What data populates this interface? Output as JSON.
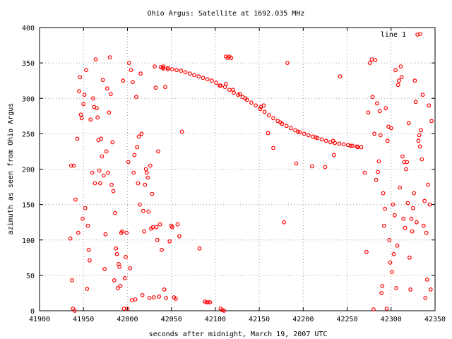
{
  "chart_data": {
    "type": "scatter",
    "title": "Ohio Argus: Satellite at 1692.035 MHz",
    "xlabel": "seconds after midnight, March 19, 2007 UTC",
    "ylabel": "azimuth as seen from Ohio Argus",
    "xlim": [
      41900,
      42350
    ],
    "ylim": [
      0,
      400
    ],
    "x_ticks": [
      "41900",
      "41950",
      "42000",
      "42050",
      "42100",
      "42150",
      "42200",
      "42250",
      "42300",
      "42350"
    ],
    "y_ticks": [
      "0",
      "50",
      "100",
      "150",
      "200",
      "250",
      "300",
      "350",
      "400"
    ],
    "grid": true,
    "legend_position": "top-right",
    "colors": {
      "series": "#ff0000",
      "grid": "#a0a0a0",
      "axis": "#000000"
    },
    "series": [
      {
        "name": "line 1",
        "marker": "circle",
        "points": [
          [
            41935,
            102
          ],
          [
            41936,
            205
          ],
          [
            41937,
            43
          ],
          [
            41938,
            3
          ],
          [
            41939,
            205
          ],
          [
            41940,
            0
          ],
          [
            41941,
            157
          ],
          [
            41943,
            243
          ],
          [
            41944,
            110
          ],
          [
            41945,
            310
          ],
          [
            41946,
            330
          ],
          [
            41947,
            277
          ],
          [
            41948,
            272
          ],
          [
            41949,
            130
          ],
          [
            41950,
            292
          ],
          [
            41951,
            305
          ],
          [
            41952,
            145
          ],
          [
            41953,
            340
          ],
          [
            41954,
            31
          ],
          [
            41955,
            120
          ],
          [
            41956,
            86
          ],
          [
            41957,
            71
          ],
          [
            41958,
            270
          ],
          [
            41960,
            195
          ],
          [
            41961,
            300
          ],
          [
            41962,
            288
          ],
          [
            41963,
            180
          ],
          [
            41964,
            355
          ],
          [
            41965,
            286
          ],
          [
            41966,
            273
          ],
          [
            41967,
            241
          ],
          [
            41968,
            198
          ],
          [
            41969,
            180
          ],
          [
            41970,
            243
          ],
          [
            41971,
            218
          ],
          [
            41972,
            326
          ],
          [
            41973,
            191
          ],
          [
            41974,
            59
          ],
          [
            41975,
            108
          ],
          [
            41976,
            225
          ],
          [
            41977,
            314
          ],
          [
            41978,
            195
          ],
          [
            41979,
            280
          ],
          [
            41980,
            358
          ],
          [
            41981,
            306
          ],
          [
            41982,
            178
          ],
          [
            41983,
            238
          ],
          [
            41984,
            169
          ],
          [
            41985,
            43
          ],
          [
            41986,
            138
          ],
          [
            41987,
            88
          ],
          [
            41988,
            80
          ],
          [
            41989,
            32
          ],
          [
            41990,
            66
          ],
          [
            41991,
            62
          ],
          [
            41992,
            35
          ],
          [
            41993,
            110
          ],
          [
            41994,
            112
          ],
          [
            41995,
            325
          ],
          [
            41996,
            3
          ],
          [
            41997,
            46
          ],
          [
            41998,
            76
          ],
          [
            41999,
            110
          ],
          [
            42000,
            3
          ],
          [
            42001,
            210
          ],
          [
            42002,
            350
          ],
          [
            42003,
            60
          ],
          [
            42004,
            340
          ],
          [
            42005,
            15
          ],
          [
            42006,
            323
          ],
          [
            42007,
            195
          ],
          [
            42008,
            220
          ],
          [
            42009,
            16
          ],
          [
            42010,
            302
          ],
          [
            42011,
            231
          ],
          [
            42012,
            180
          ],
          [
            42013,
            246
          ],
          [
            42014,
            150
          ],
          [
            42015,
            335
          ],
          [
            42016,
            250
          ],
          [
            42017,
            22
          ],
          [
            42018,
            141
          ],
          [
            42019,
            112
          ],
          [
            42020,
            178
          ],
          [
            42021,
            200
          ],
          [
            42022,
            195
          ],
          [
            42023,
            188
          ],
          [
            42024,
            140
          ],
          [
            42025,
            18
          ],
          [
            42026,
            205
          ],
          [
            42027,
            116
          ],
          [
            42028,
            165
          ],
          [
            42029,
            118
          ],
          [
            42030,
            19
          ],
          [
            42031,
            345
          ],
          [
            42032,
            315
          ],
          [
            42033,
            118
          ],
          [
            42034,
            100
          ],
          [
            42035,
            225
          ],
          [
            42036,
            20
          ],
          [
            42037,
            122
          ],
          [
            42038,
            344
          ],
          [
            42039,
            86
          ],
          [
            42040,
            343
          ],
          [
            42041,
            342
          ],
          [
            42042,
            30
          ],
          [
            42043,
            316
          ],
          [
            42044,
            18
          ],
          [
            42046,
            341
          ],
          [
            42048,
            98
          ],
          [
            42050,
            120
          ],
          [
            42051,
            118
          ],
          [
            42053,
            19
          ],
          [
            42055,
            17
          ],
          [
            42057,
            122
          ],
          [
            42059,
            105
          ],
          [
            42062,
            253
          ],
          [
            42082,
            88
          ],
          [
            42088,
            13
          ],
          [
            42090,
            12
          ],
          [
            42092,
            12
          ],
          [
            42094,
            12
          ],
          [
            42106,
            3
          ],
          [
            42108,
            1
          ],
          [
            42110,
            0
          ],
          [
            42112,
            359
          ],
          [
            42114,
            357
          ],
          [
            42116,
            359
          ],
          [
            42118,
            357
          ],
          [
            42155,
            290
          ],
          [
            42160,
            251
          ],
          [
            42166,
            230
          ],
          [
            42178,
            125
          ],
          [
            42182,
            350
          ],
          [
            42192,
            208
          ],
          [
            42210,
            204
          ],
          [
            42225,
            203
          ],
          [
            42235,
            220
          ],
          [
            42242,
            331
          ],
          [
            42270,
            195
          ],
          [
            42272,
            83
          ],
          [
            42274,
            280
          ],
          [
            42276,
            350
          ],
          [
            42278,
            355
          ],
          [
            42279,
            302
          ],
          [
            42280,
            2
          ],
          [
            42281,
            250
          ],
          [
            42282,
            354
          ],
          [
            42283,
            185
          ],
          [
            42284,
            293
          ],
          [
            42285,
            196
          ],
          [
            42286,
            211
          ],
          [
            42287,
            282
          ],
          [
            42288,
            248
          ],
          [
            42289,
            25
          ],
          [
            42290,
            35
          ],
          [
            42291,
            166
          ],
          [
            42292,
            120
          ],
          [
            42293,
            144
          ],
          [
            42294,
            286
          ],
          [
            42295,
            3
          ],
          [
            42296,
            240
          ],
          [
            42297,
            260
          ],
          [
            42298,
            100
          ],
          [
            42299,
            68
          ],
          [
            42300,
            258
          ],
          [
            42301,
            55
          ],
          [
            42302,
            150
          ],
          [
            42303,
            80
          ],
          [
            42304,
            135
          ],
          [
            42305,
            340
          ],
          [
            42306,
            32
          ],
          [
            42307,
            92
          ],
          [
            42308,
            319
          ],
          [
            42309,
            325
          ],
          [
            42310,
            174
          ],
          [
            42311,
            345
          ],
          [
            42312,
            330
          ],
          [
            42313,
            218
          ],
          [
            42314,
            130
          ],
          [
            42315,
            210
          ],
          [
            42316,
            117
          ],
          [
            42317,
            200
          ],
          [
            42318,
            210
          ],
          [
            42319,
            152
          ],
          [
            42320,
            265
          ],
          [
            42321,
            75
          ],
          [
            42322,
            30
          ],
          [
            42323,
            130
          ],
          [
            42324,
            112
          ],
          [
            42325,
            145
          ],
          [
            42326,
            166
          ],
          [
            42327,
            325
          ],
          [
            42328,
            295
          ],
          [
            42329,
            125
          ],
          [
            42330,
            390
          ],
          [
            42331,
            240
          ],
          [
            42332,
            248
          ],
          [
            42333,
            232
          ],
          [
            42334,
            255
          ],
          [
            42335,
            214
          ],
          [
            42336,
            305
          ],
          [
            42337,
            120
          ],
          [
            42338,
            155
          ],
          [
            42339,
            18
          ],
          [
            42340,
            110
          ],
          [
            42341,
            44
          ],
          [
            42342,
            178
          ],
          [
            42343,
            290
          ],
          [
            42344,
            150
          ],
          [
            42345,
            30
          ],
          [
            42346,
            268
          ],
          [
            42041,
            345
          ],
          [
            42046,
            343
          ],
          [
            42051,
            341
          ],
          [
            42056,
            340
          ],
          [
            42061,
            339
          ],
          [
            42066,
            337
          ],
          [
            42071,
            335
          ],
          [
            42076,
            333
          ],
          [
            42081,
            331
          ],
          [
            42086,
            329
          ],
          [
            42091,
            327
          ],
          [
            42096,
            325
          ],
          [
            42101,
            322
          ],
          [
            42106,
            318
          ],
          [
            42111,
            316
          ],
          [
            42116,
            312
          ],
          [
            42121,
            308
          ],
          [
            42126,
            305
          ],
          [
            42131,
            302
          ],
          [
            42136,
            298
          ],
          [
            42141,
            294
          ],
          [
            42146,
            290
          ],
          [
            42151,
            285
          ],
          [
            42156,
            281
          ],
          [
            42161,
            276
          ],
          [
            42166,
            272
          ],
          [
            42171,
            268
          ],
          [
            42176,
            264
          ],
          [
            42181,
            261
          ],
          [
            42186,
            258
          ],
          [
            42191,
            255
          ],
          [
            42196,
            252
          ],
          [
            42201,
            250
          ],
          [
            42206,
            248
          ],
          [
            42211,
            246
          ],
          [
            42216,
            244
          ],
          [
            42221,
            242
          ],
          [
            42226,
            240
          ],
          [
            42231,
            238
          ],
          [
            42236,
            237
          ],
          [
            42241,
            236
          ],
          [
            42246,
            235
          ],
          [
            42251,
            234
          ],
          [
            42256,
            233
          ],
          [
            42261,
            232
          ],
          [
            42266,
            231
          ],
          [
            42105,
            318
          ],
          [
            42112,
            320
          ],
          [
            42120,
            312
          ],
          [
            42128,
            306
          ],
          [
            42134,
            300
          ],
          [
            42152,
            288
          ],
          [
            42174,
            266
          ],
          [
            42194,
            253
          ],
          [
            42214,
            245
          ],
          [
            42234,
            240
          ],
          [
            42254,
            233
          ],
          [
            42262,
            231
          ]
        ]
      }
    ]
  }
}
